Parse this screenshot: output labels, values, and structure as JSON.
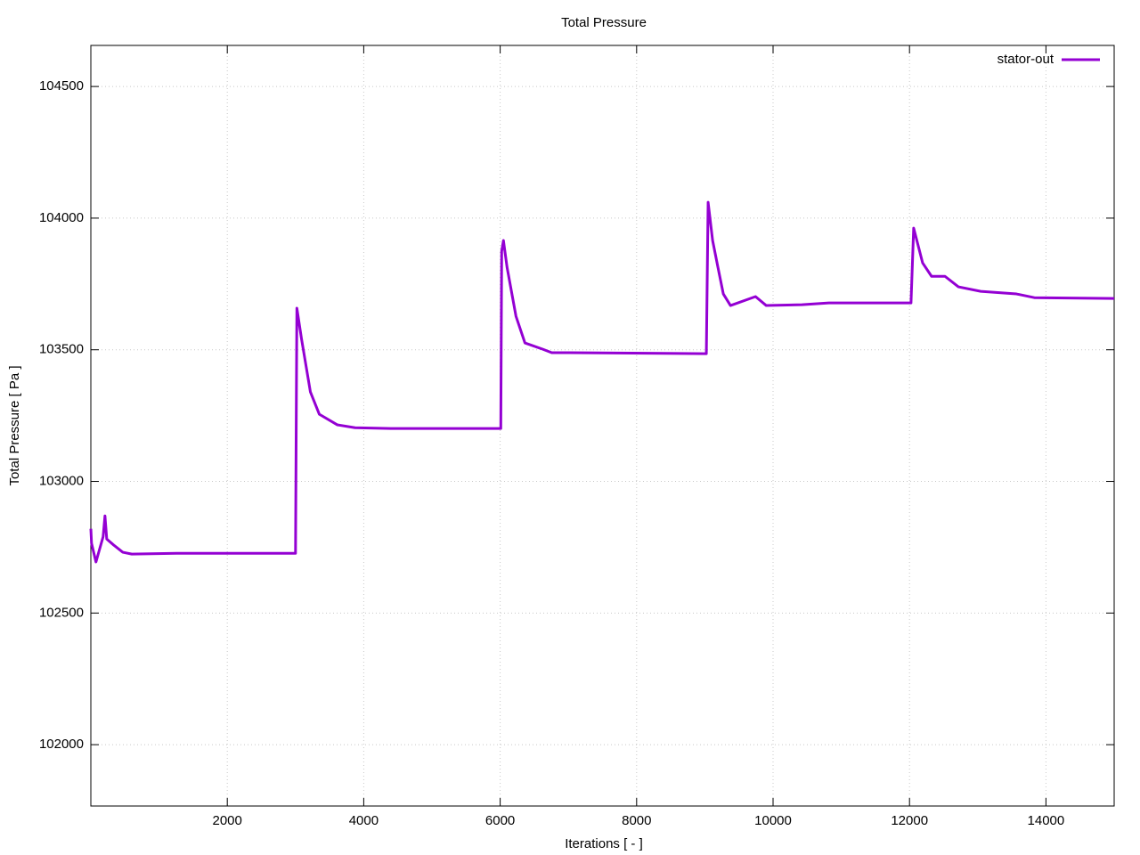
{
  "chart_data": {
    "type": "line",
    "title": "Total Pressure",
    "x_label": "Iterations [ - ]",
    "y_label": "Total Pressure [ Pa ]",
    "xlim": [
      0,
      15000
    ],
    "ylim": [
      101767,
      104656
    ],
    "xticks": [
      2000,
      4000,
      6000,
      8000,
      10000,
      12000,
      14000
    ],
    "yticks": [
      102000,
      102500,
      103000,
      103500,
      104000,
      104500
    ],
    "grid": true,
    "legend": "top-right",
    "x": [
      0,
      10,
      75,
      180,
      207,
      233,
      336,
      468,
      600,
      1256,
      3000,
      3020,
      3087,
      3218,
      3349,
      3611,
      3873,
      4397,
      6009,
      6022,
      6048,
      6101,
      6232,
      6363,
      6625,
      6756,
      7018,
      9022,
      9048,
      9114,
      9192,
      9271,
      9376,
      9743,
      9900,
      10424,
      10817,
      12022,
      12061,
      12192,
      12323,
      12520,
      12717,
      13044,
      13568,
      13830,
      15000
    ],
    "series": [
      {
        "name": "stator-out",
        "color": "#9400d3",
        "values": [
          102820,
          102765,
          102694,
          102790,
          102869,
          102781,
          102758,
          102731,
          102724,
          102727,
          102727,
          103658,
          103543,
          103340,
          103255,
          103215,
          103204,
          103201,
          103201,
          103874,
          103915,
          103813,
          103627,
          103526,
          103502,
          103489,
          103489,
          103485,
          104060,
          103915,
          103813,
          103712,
          103668,
          103702,
          103668,
          103671,
          103678,
          103678,
          103962,
          103830,
          103779,
          103779,
          103739,
          103722,
          103712,
          103698,
          103695
        ]
      }
    ]
  }
}
